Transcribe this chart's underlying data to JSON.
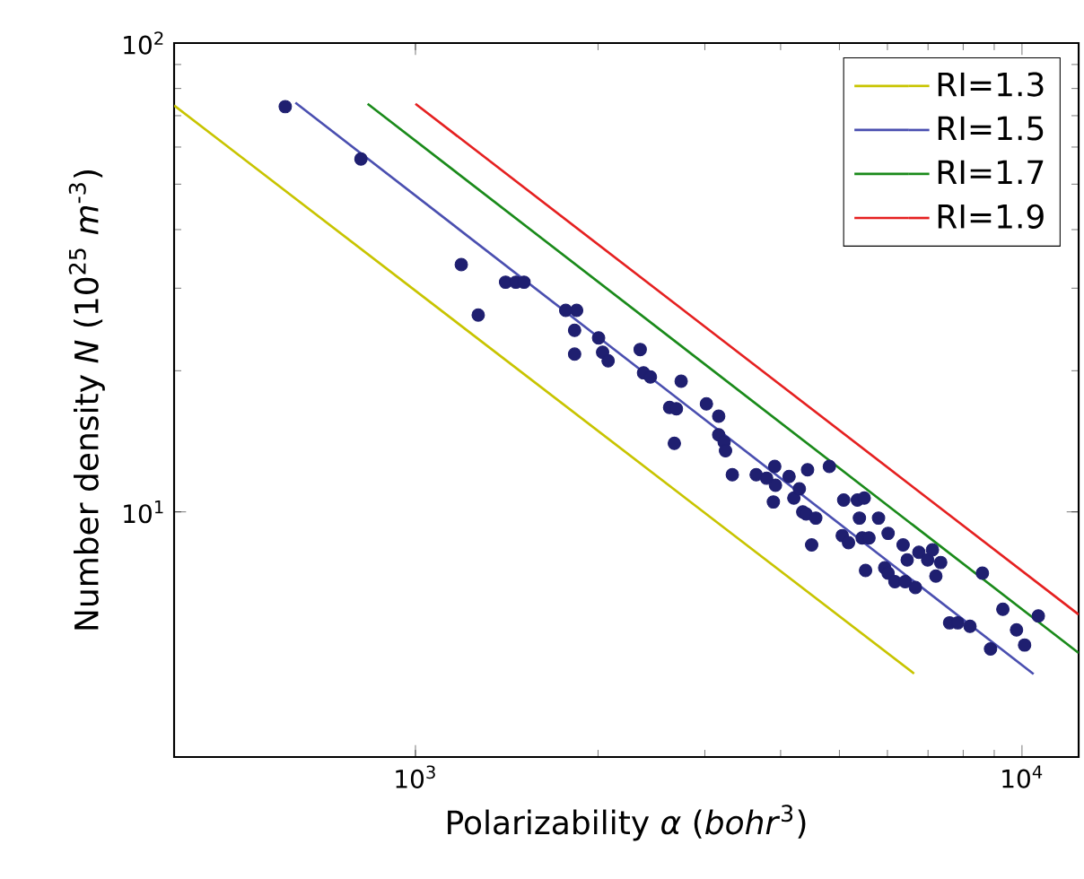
{
  "chart_data": {
    "type": "line",
    "xlabel": "Polarizability *α* (*bohr*$^{3}$)",
    "ylabel": "Number density *N* (10$^{25}$ *m*$^{-3}$)",
    "log": "xy",
    "legend": "top right",
    "grid": false,
    "xlim": [
      400,
      12400
    ],
    "ylim": [
      3,
      100
    ],
    "xticks": [
      {
        "value": 1000,
        "label": "10$^{3}$"
      },
      {
        "value": 10000,
        "label": "10$^{4}$"
      }
    ],
    "yticks": [
      {
        "value": 10,
        "label": "10$^{1}$"
      },
      {
        "value": 100,
        "label": "10$^{2}$"
      }
    ],
    "series": [
      {
        "name": "RI=1.3",
        "type": "line",
        "marker": "none",
        "color": "#c8c400",
        "x": [
          400,
          6640
        ],
        "values": [
          73.6,
          4.52
        ]
      },
      {
        "name": "RI=1.5",
        "type": "line",
        "marker": "none",
        "color": "#4a4fb0",
        "x": [
          634,
          10450
        ],
        "values": [
          74.6,
          4.51
        ]
      },
      {
        "name": "RI=1.7",
        "type": "line",
        "marker": "none",
        "color": "#1a8a1a",
        "x": [
          834,
          12400
        ],
        "values": [
          74.2,
          5.0
        ]
      },
      {
        "name": "RI=1.9",
        "type": "line",
        "marker": "none",
        "color": "#e52020",
        "x": [
          1000,
          12400
        ],
        "values": [
          74.2,
          6.04
        ]
      },
      {
        "type": "scatter",
        "marker": "circle",
        "color": "#1f1f70",
        "x": [
          610,
          813,
          1190,
          1269,
          1408,
          1464,
          1510,
          1769,
          1844,
          1830,
          1830,
          2004,
          2035,
          2078,
          2347,
          2377,
          2440,
          2742,
          2624,
          2693,
          2672,
          3018,
          3162,
          3162,
          3228,
          3245,
          3330,
          3646,
          3793,
          3912,
          3923,
          3892,
          4130,
          4206,
          4295,
          4431,
          4351,
          4407,
          4571,
          4500,
          4813,
          5082,
          5055,
          5176,
          5353,
          5494,
          5395,
          5451,
          5594,
          5522,
          5801,
          6016,
          5938,
          6016,
          6173,
          6368,
          6468,
          6418,
          6673,
          6761,
          6991,
          7119,
          7212,
          7345,
          7597,
          7837,
          8209,
          8605,
          8875,
          9300,
          9795,
          10100,
          10640
        ],
        "values": [
          73.2,
          56.6,
          33.7,
          26.3,
          30.9,
          30.9,
          30.9,
          26.9,
          26.9,
          24.4,
          21.7,
          23.5,
          21.9,
          21.0,
          22.2,
          19.8,
          19.4,
          19.0,
          16.7,
          16.6,
          14.0,
          17.0,
          16.0,
          14.6,
          14.1,
          13.5,
          12.0,
          12.0,
          11.8,
          12.5,
          11.4,
          10.5,
          11.9,
          10.7,
          11.2,
          12.3,
          10.0,
          9.9,
          9.7,
          8.5,
          12.5,
          10.6,
          8.9,
          8.6,
          10.6,
          10.7,
          9.7,
          8.8,
          8.8,
          7.5,
          9.7,
          9.0,
          7.6,
          7.4,
          7.1,
          8.5,
          7.9,
          7.1,
          6.9,
          8.2,
          7.9,
          8.3,
          7.3,
          7.8,
          5.8,
          5.8,
          5.7,
          7.4,
          5.1,
          6.2,
          5.6,
          5.2,
          6.0
        ]
      }
    ]
  }
}
